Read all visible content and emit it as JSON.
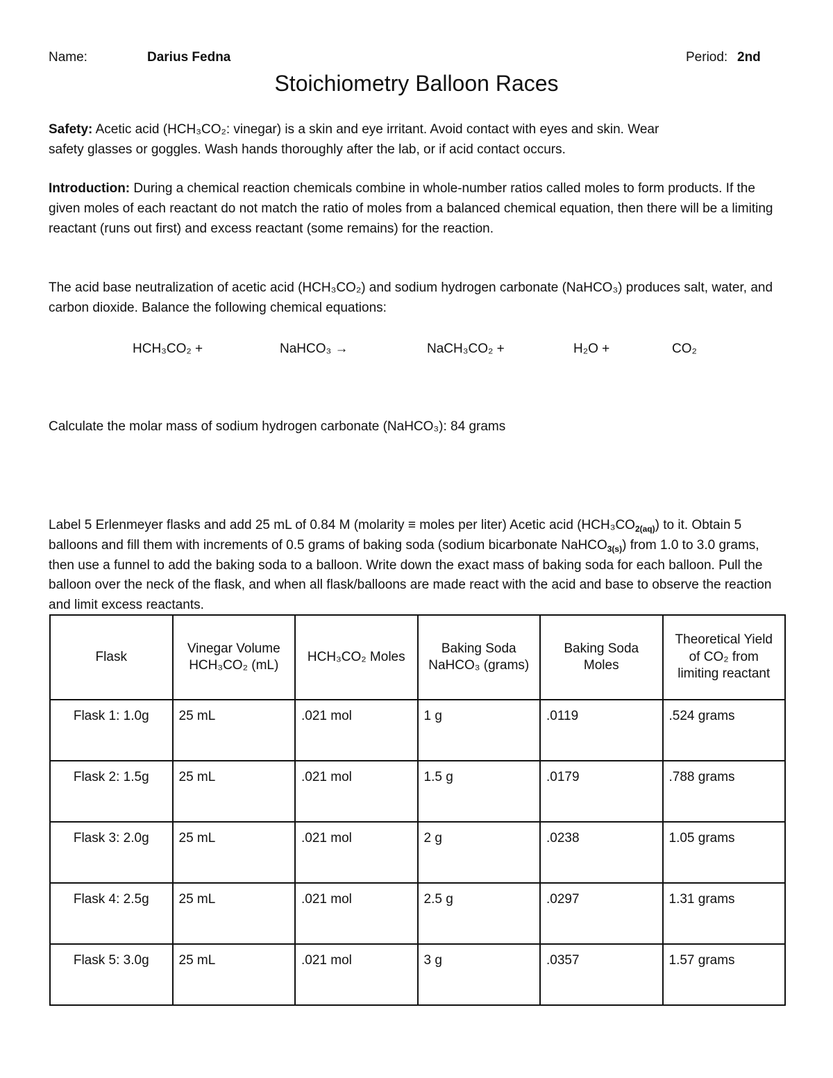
{
  "header": {
    "name_label": "Name:",
    "name_value": "Darius Fedna",
    "period_label": "Period:",
    "period_value": "2nd"
  },
  "title": "Stoichiometry Balloon Races",
  "safety": {
    "label": "Safety:",
    "line1": "Acetic acid (HCH₃CO₂: vinegar)  is a skin and eye irritant.  Avoid contact with eyes and skin.  Wear",
    "line2": "safety glasses or goggles.  Wash hands thoroughly after the lab, or if acid contact occurs."
  },
  "introduction": {
    "label": "Introduction:",
    "text": "During a chemical reaction chemicals combine in whole-number ratios called moles to form products.  If the given moles of each reactant do not match the ratio of moles from a balanced chemical equation, then there will be a limiting reactant (runs out first) and excess reactant (some remains) for the reaction."
  },
  "neutralization": "The acid base neutralization of acetic acid (HCH₃CO₂) and sodium hydrogen carbonate (NaHCO₃) produces salt, water, and carbon dioxide.  Balance the following chemical equations:",
  "equation": [
    "HCH₃CO₂  +",
    "NaHCO₃ →",
    "NaCH₃CO₂  +",
    "H₂O +",
    "CO₂"
  ],
  "molar_mass": "Calculate the molar mass of sodium hydrogen carbonate (NaHCO₃): 84 grams",
  "procedure": {
    "part1": "Label 5 Erlenmeyer flasks and add 25 mL of  0.84 M (molarity ≡ moles per liter) Acetic acid (HCH₃CO",
    "sub1": "2(aq)",
    "part2": ") to it. Obtain 5 balloons and fill them with increments of 0.5 grams of baking soda (sodium bicarbonate NaHCO",
    "sub2": "3(s)",
    "part3": ") from 1.0 to 3.0 grams, then use a funnel to add the baking soda to a balloon.  Write down the exact mass of baking soda for each balloon.  Pull the balloon over the neck of the flask, and when all flask/balloons are made react with the acid and base to observe the reaction and limit excess reactants."
  },
  "table": {
    "headers": [
      "Flask",
      "Vinegar Volume HCH₃CO₂ (mL)",
      "HCH₃CO₂ Moles",
      "Baking Soda NaHCO₃ (grams)",
      "Baking Soda Moles",
      "Theoretical Yield of CO₂ from limiting reactant"
    ],
    "rows": [
      [
        "Flask 1: 1.0g",
        "25 mL",
        ".021 mol",
        "1 g",
        ".0119",
        ".524 grams"
      ],
      [
        "Flask 2: 1.5g",
        "25 mL",
        ".021 mol",
        "1.5 g",
        ".0179",
        ".788 grams"
      ],
      [
        "Flask 3: 2.0g",
        "25 mL",
        ".021 mol",
        "2 g",
        ".0238",
        "1.05 grams"
      ],
      [
        "Flask 4: 2.5g",
        "25 mL",
        ".021 mol",
        "2.5 g",
        ".0297",
        "1.31 grams"
      ],
      [
        "Flask 5: 3.0g",
        "25 mL",
        ".021 mol",
        "3 g",
        ".0357",
        "1.57 grams"
      ]
    ]
  }
}
